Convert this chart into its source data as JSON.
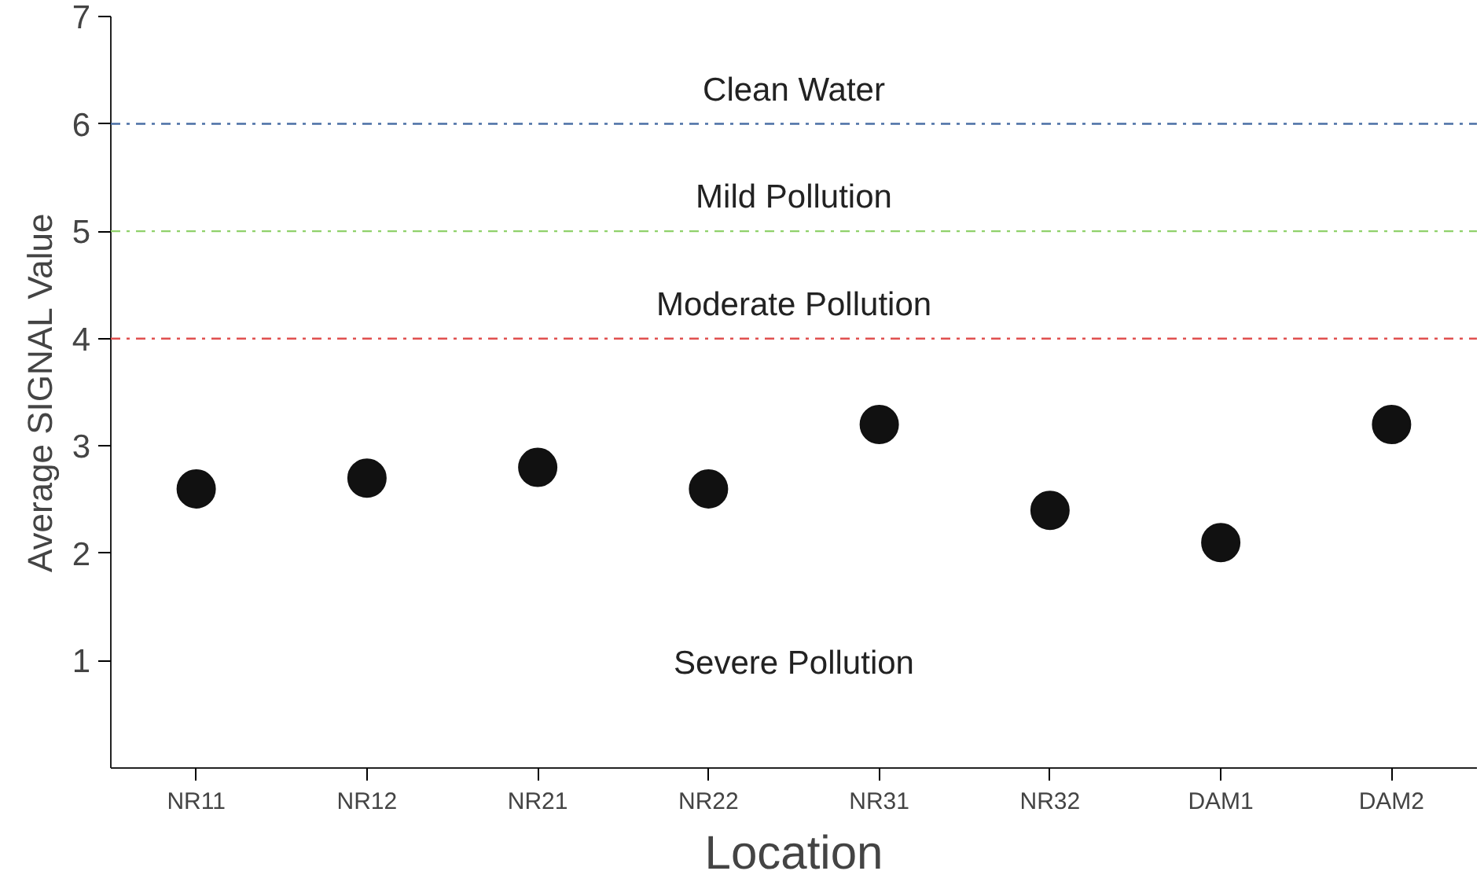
{
  "chart_data": {
    "type": "scatter",
    "xlabel": "Location",
    "ylabel": "Average SIGNAL Value",
    "categories": [
      "NR11",
      "NR12",
      "NR21",
      "NR22",
      "NR31",
      "NR32",
      "DAM1",
      "DAM2"
    ],
    "values": [
      2.6,
      2.7,
      2.8,
      2.6,
      3.2,
      2.4,
      2.1,
      3.2
    ],
    "color": "#111111",
    "marker": "circle",
    "grid": false,
    "ylim": [
      0,
      7
    ],
    "yticks": [
      1,
      2,
      3,
      4,
      5,
      6,
      7
    ],
    "ref_lines": [
      {
        "axis": "y",
        "value": 6,
        "label": "Clean Water",
        "color": "#4a6fa5",
        "line_style": "dashdot"
      },
      {
        "axis": "y",
        "value": 5,
        "label": "Mild Pollution",
        "color": "#8fd16b",
        "line_style": "dashdot"
      },
      {
        "axis": "y",
        "value": 4,
        "label": "Moderate Pollution",
        "color": "#e0504f",
        "line_style": "dashdot"
      }
    ],
    "annotations": [
      "Severe Pollution"
    ]
  }
}
